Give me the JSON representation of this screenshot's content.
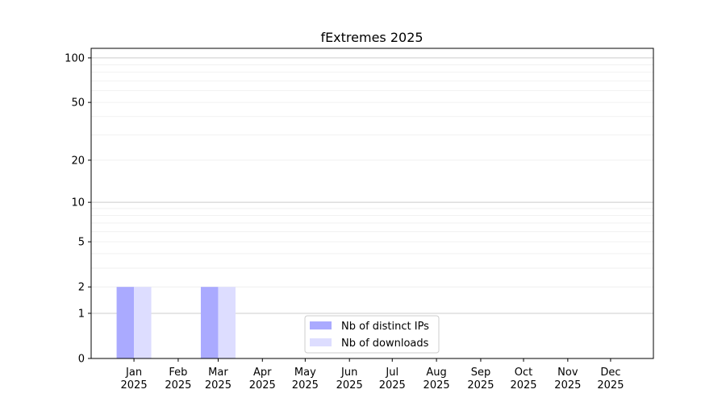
{
  "chart_data": {
    "type": "bar",
    "title": "fExtremes 2025",
    "xlabel": "",
    "ylabel": "",
    "y_scale": "log(y+1)",
    "ylim": [
      0,
      116
    ],
    "y_ticks": [
      0,
      1,
      2,
      5,
      10,
      20,
      50,
      100
    ],
    "grid": true,
    "legend_position": "lower-center",
    "categories": [
      "Jan\n2025",
      "Feb\n2025",
      "Mar\n2025",
      "Apr\n2025",
      "May\n2025",
      "Jun\n2025",
      "Jul\n2025",
      "Aug\n2025",
      "Sep\n2025",
      "Oct\n2025",
      "Nov\n2025",
      "Dec\n2025"
    ],
    "category_dates": [
      "2025-01-01",
      "2025-02-01",
      "2025-03-01",
      "2025-04-01",
      "2025-05-01",
      "2025-06-01",
      "2025-07-01",
      "2025-08-01",
      "2025-09-01",
      "2025-10-01",
      "2025-11-01",
      "2025-12-01"
    ],
    "xlim": [
      "2024-12-02",
      "2025-12-31"
    ],
    "series": [
      {
        "name": "Nb of distinct IPs",
        "color": "#aaaaff",
        "values": [
          2,
          0,
          2,
          0,
          0,
          0,
          0,
          0,
          0,
          0,
          0,
          0
        ]
      },
      {
        "name": "Nb of downloads",
        "color": "#ddddff",
        "values": [
          2,
          0,
          2,
          0,
          0,
          0,
          0,
          0,
          0,
          0,
          0,
          0
        ]
      }
    ]
  }
}
